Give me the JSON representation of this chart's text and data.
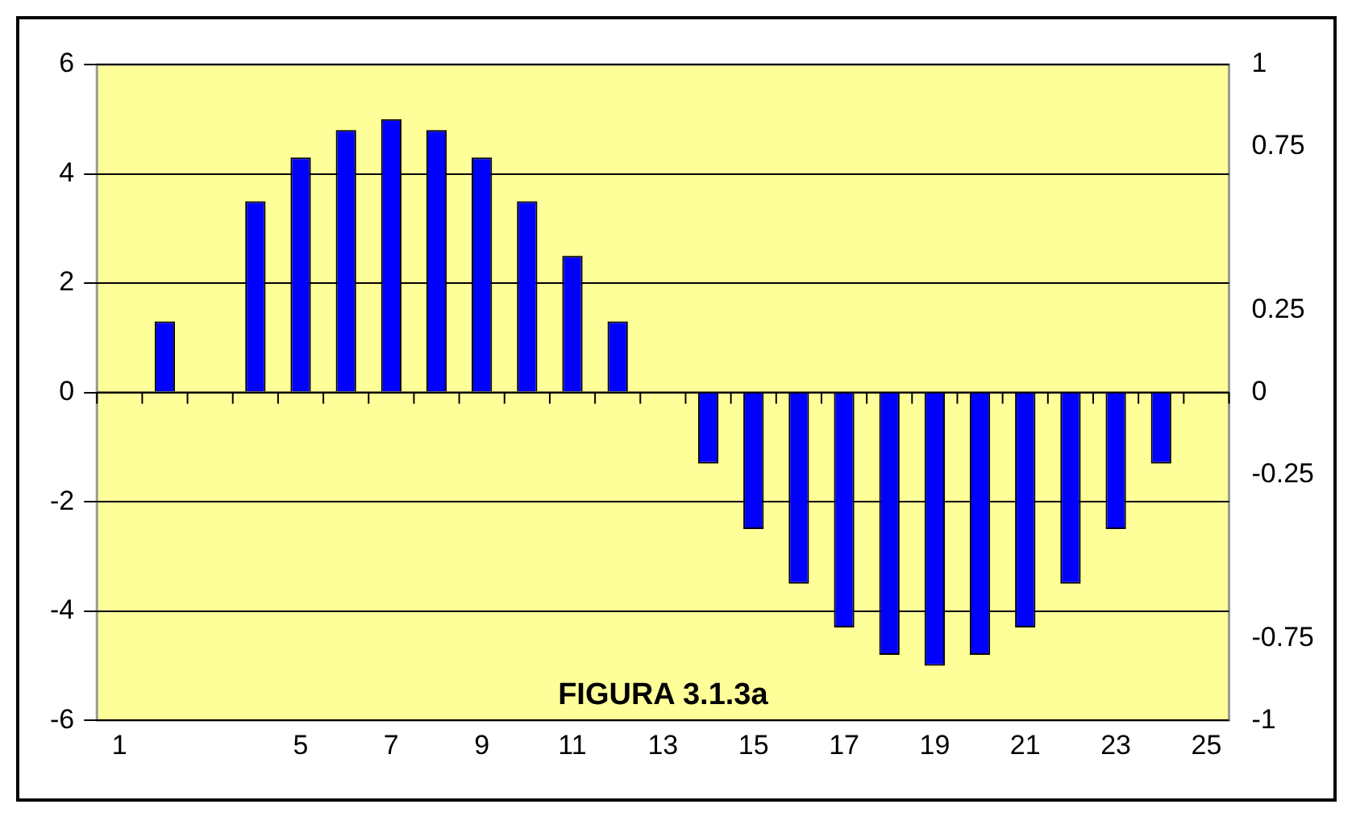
{
  "chart_data": {
    "type": "bar",
    "title": "FIGURA 3.1.3a",
    "categories": [
      "1",
      null,
      null,
      null,
      "5",
      null,
      "7",
      null,
      "9",
      null,
      "11",
      null,
      "13",
      null,
      "15",
      null,
      "17",
      null,
      "19",
      null,
      "21",
      null,
      "23",
      null,
      "25"
    ],
    "series": [
      {
        "color": "#0000ff",
        "values": [
          0,
          1.3,
          null,
          3.5,
          4.3,
          4.8,
          5,
          4.8,
          4.3,
          3.5,
          2.5,
          1.3,
          0,
          -1.3,
          -2.5,
          -3.5,
          -4.3,
          -4.8,
          -5,
          -4.8,
          -4.3,
          -3.5,
          -2.5,
          -1.3,
          0
        ]
      }
    ],
    "ylim": [
      -6,
      6
    ],
    "yticks": [
      -6,
      -4,
      -2,
      0,
      2,
      4,
      6
    ],
    "y2lim": [
      -1,
      1
    ],
    "y2ticks": [
      -1,
      -0.75,
      -0.25,
      0,
      0.25,
      0.75,
      1
    ],
    "grid": "y",
    "legend": false
  }
}
